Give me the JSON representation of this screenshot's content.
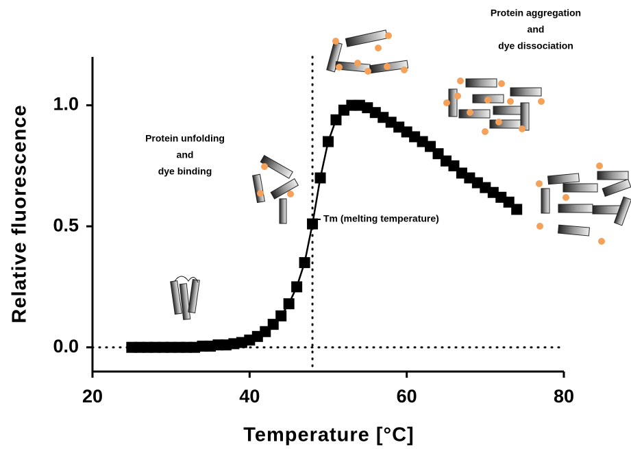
{
  "chart_data": {
    "type": "scatter",
    "x_label": "Temperature [°C]",
    "y_label": "Relative fluorescence",
    "x": [
      25,
      26,
      27,
      28,
      29,
      30,
      31,
      32,
      33,
      34,
      35,
      36,
      37,
      38,
      39,
      40,
      41,
      42,
      43,
      44,
      45,
      46,
      47,
      48,
      49,
      50,
      51,
      52,
      53,
      54,
      55,
      56,
      57,
      58,
      59,
      60,
      61,
      62,
      63,
      64,
      65,
      66,
      67,
      68,
      69,
      70,
      71,
      72,
      73,
      74
    ],
    "values": [
      0,
      0,
      0,
      0,
      0,
      0,
      0,
      0,
      0,
      0.005,
      0.005,
      0.01,
      0.01,
      0.015,
      0.02,
      0.03,
      0.045,
      0.065,
      0.095,
      0.13,
      0.18,
      0.25,
      0.35,
      0.51,
      0.7,
      0.85,
      0.94,
      0.98,
      1.0,
      1.0,
      0.99,
      0.97,
      0.95,
      0.93,
      0.91,
      0.89,
      0.87,
      0.85,
      0.83,
      0.8,
      0.77,
      0.75,
      0.72,
      0.7,
      0.68,
      0.66,
      0.64,
      0.62,
      0.6,
      0.57
    ],
    "color": "#000000",
    "xlim": [
      20,
      80
    ],
    "xticks": [
      20,
      40,
      60,
      80
    ],
    "ylim": [
      -0.1,
      1.2
    ],
    "yticks": [
      {
        "value": 0,
        "label": "0.0"
      },
      {
        "value": 0.5,
        "label": "0.5"
      },
      {
        "value": 1,
        "label": "1.0"
      }
    ],
    "vline": 48,
    "hline": 0,
    "annotations": [
      {
        "lines": [
          "Protein unfolding",
          "and",
          "dye binding"
        ]
      },
      {
        "lines": [
          "Protein aggregation",
          "and",
          "dye dissociation"
        ]
      },
      {
        "lines": [
          "Tm (melting temperature)"
        ]
      }
    ]
  }
}
